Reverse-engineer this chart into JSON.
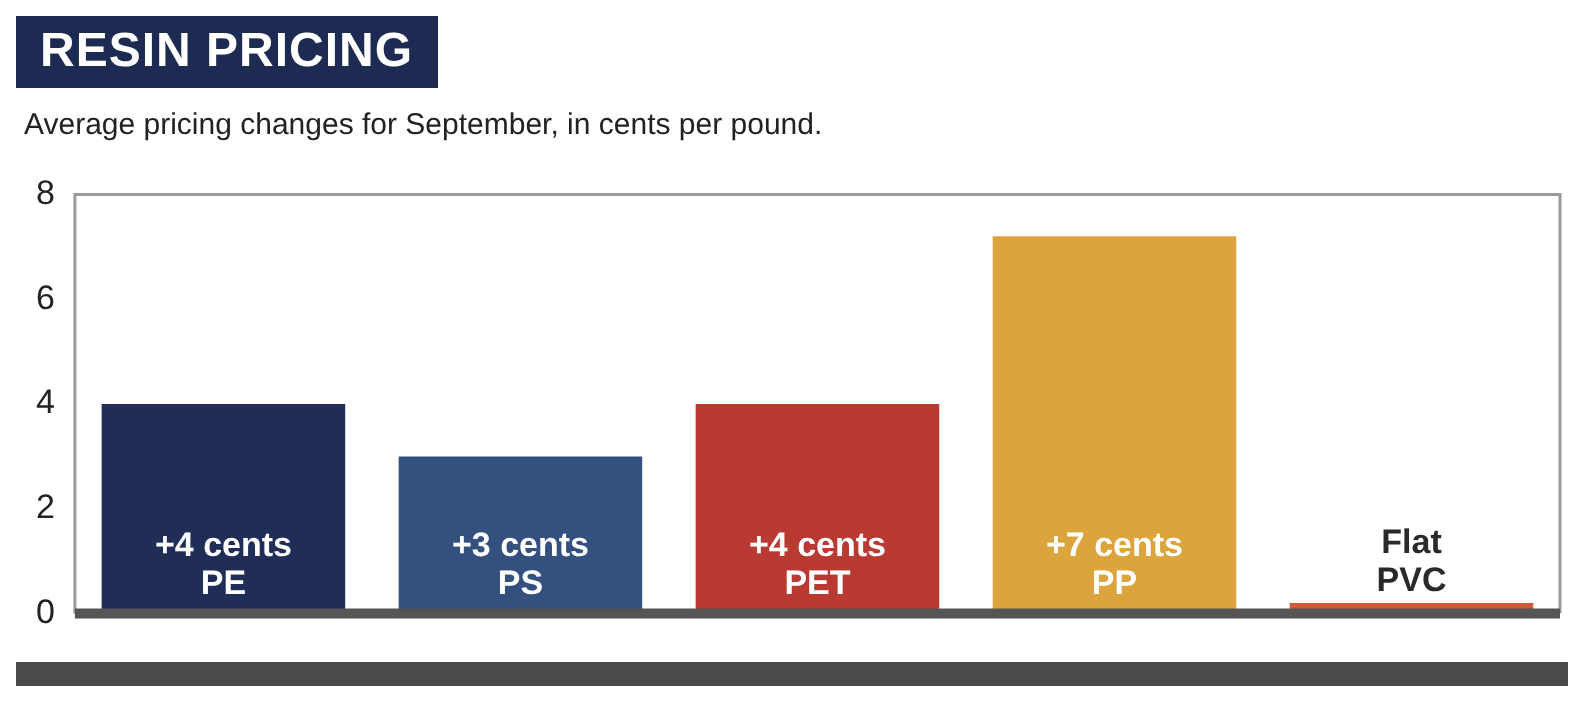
{
  "chart_data": {
    "type": "bar",
    "title": "RESIN PRICING",
    "subtitle": "Average pricing changes for September, in cents per pound.",
    "categories": [
      "PE",
      "PS",
      "PET",
      "PP",
      "PVC"
    ],
    "values": [
      4,
      3,
      4,
      7.2,
      0.2
    ],
    "colors": [
      "#1f2d57",
      "#33507f",
      "#b83a33",
      "#dba43c",
      "#cf5a35"
    ],
    "value_labels": [
      "+4 cents",
      "+3 cents",
      "+4 cents",
      "+7 cents",
      "Flat"
    ],
    "ylim": [
      0,
      8
    ],
    "yticks": [
      0,
      2,
      4,
      6,
      8
    ],
    "grid": false,
    "legend": false,
    "tick_labels": "y"
  }
}
